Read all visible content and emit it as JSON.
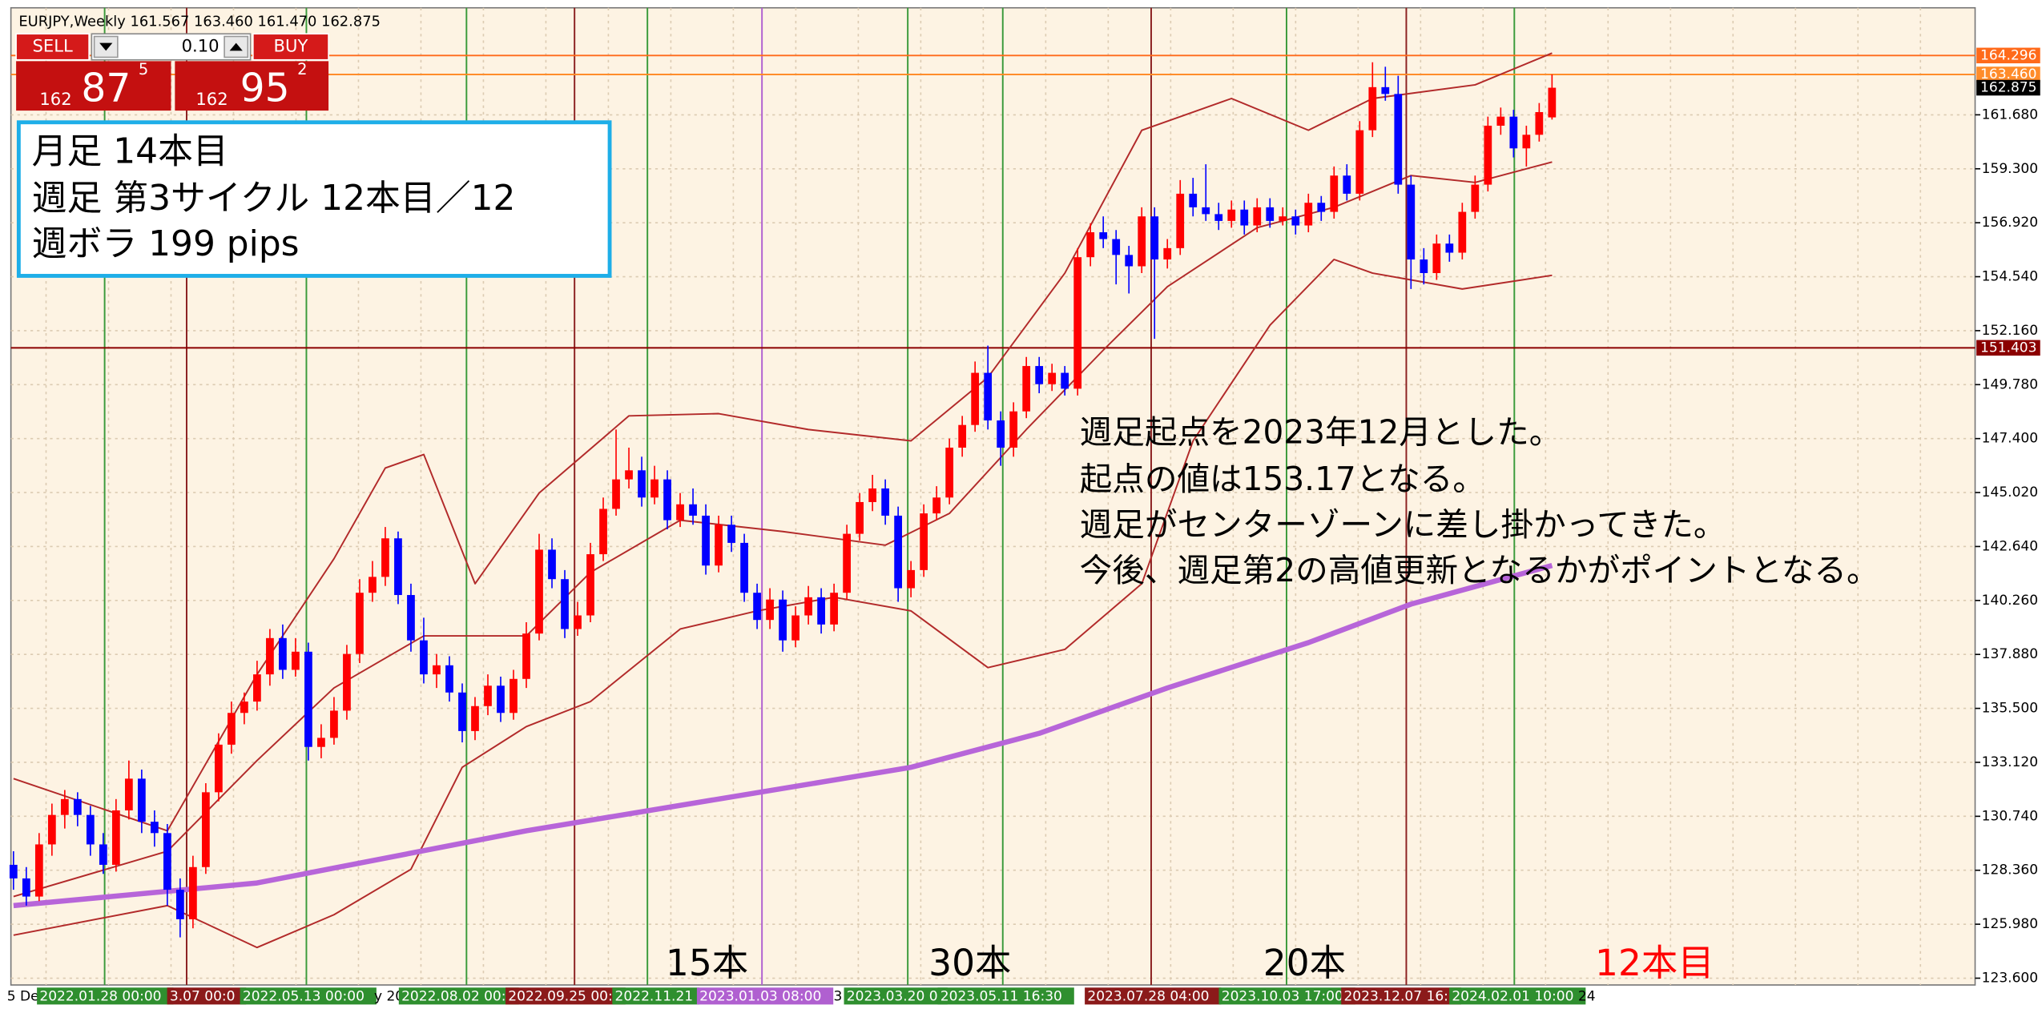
{
  "header": "EURJPY,Weekly  161.567 163.460 161.470 162.875",
  "trade_panel": {
    "sell": "SELL",
    "buy": "BUY",
    "lot": "0.10",
    "bid": {
      "big": "162",
      "pips": "87",
      "point": "5"
    },
    "ask": {
      "big": "162",
      "pips": "95",
      "point": "2"
    }
  },
  "info_box": [
    "月足  14本目",
    "週足  第3サイクル  12本目／12",
    "週ボラ  199 pips"
  ],
  "annotation": [
    "週足起点を2023年12月とした。",
    "起点の値は153.17となる。",
    "週足がセンターゾーンに差し掛かってきた。",
    "今後、週足第2の高値更新となるかがポイントとなる。"
  ],
  "counts": [
    {
      "text": "15本",
      "color": "#000000"
    },
    {
      "text": "30本",
      "color": "#000000"
    },
    {
      "text": "20本",
      "color": "#000000"
    },
    {
      "text": "12本目",
      "color": "#ff0000"
    }
  ],
  "time_labels": [
    "5 De",
    "2022.01.28 00:00",
    "3.07 00:0",
    "2022.05.13 00:00",
    "y 20",
    "2022.08.02 00:",
    "2022.09.25 00:",
    "2022.11.21",
    "2023.01.03 08:00",
    "3",
    "2023.03.20 0",
    "2023.05.11 16:30",
    "2023.07.28 04:00",
    "2023.10.03 17:00",
    "2023.12.07 16:",
    "2024.02.01 10:00",
    "24"
  ],
  "chart_data": {
    "type": "candlestick",
    "up_color": "#ff0000",
    "down_color": "#0000ff",
    "grid": true,
    "xlim": [
      -0.2,
      153
    ],
    "ylim": [
      123.3,
      166.4
    ],
    "yticks": [
      {
        "value": 161.68,
        "label": "161.680"
      },
      {
        "value": 159.3,
        "label": "159.300"
      },
      {
        "value": 156.92,
        "label": "156.920"
      },
      {
        "value": 154.54,
        "label": "154.540"
      },
      {
        "value": 152.16,
        "label": "152.160"
      },
      {
        "value": 149.78,
        "label": "149.780"
      },
      {
        "value": 147.4,
        "label": "147.400"
      },
      {
        "value": 145.02,
        "label": "145.020"
      },
      {
        "value": 142.64,
        "label": "142.640"
      },
      {
        "value": 140.26,
        "label": "140.260"
      },
      {
        "value": 137.88,
        "label": "137.880"
      },
      {
        "value": 135.5,
        "label": "135.500"
      },
      {
        "value": 133.12,
        "label": "133.120"
      },
      {
        "value": 130.74,
        "label": "130.740"
      },
      {
        "value": 128.36,
        "label": "128.360"
      },
      {
        "value": 125.98,
        "label": "125.980"
      },
      {
        "value": 123.6,
        "label": "123.600"
      }
    ],
    "price_lines": [
      {
        "value": 164.296,
        "label": "164.296",
        "color": "#ff6a1a"
      },
      {
        "value": 163.46,
        "label": "163.460",
        "color": "#ff8c2a"
      },
      {
        "value": 151.403,
        "label": "151.403",
        "color": "#8b0000"
      }
    ],
    "current_price": {
      "value": 162.875,
      "label": "162.875",
      "color": "#000000"
    },
    "candles": [
      [
        128.6,
        129.2,
        127.5,
        128.0
      ],
      [
        128.0,
        128.5,
        126.8,
        127.2
      ],
      [
        127.2,
        130.0,
        127.0,
        129.5
      ],
      [
        129.5,
        131.3,
        129.0,
        130.8
      ],
      [
        130.8,
        131.9,
        130.2,
        131.5
      ],
      [
        131.5,
        131.8,
        130.3,
        130.8
      ],
      [
        130.8,
        131.2,
        129.0,
        129.5
      ],
      [
        129.5,
        130.0,
        128.2,
        128.6
      ],
      [
        128.6,
        131.5,
        128.3,
        131.0
      ],
      [
        131.0,
        133.2,
        130.6,
        132.4
      ],
      [
        132.4,
        132.8,
        130.0,
        130.5
      ],
      [
        130.5,
        131.0,
        129.4,
        130.0
      ],
      [
        130.0,
        130.4,
        126.8,
        127.5
      ],
      [
        127.5,
        128.0,
        125.4,
        126.2
      ],
      [
        126.2,
        129.0,
        125.8,
        128.5
      ],
      [
        128.5,
        132.2,
        128.2,
        131.8
      ],
      [
        131.8,
        134.4,
        131.4,
        133.9
      ],
      [
        133.9,
        135.8,
        133.5,
        135.3
      ],
      [
        135.3,
        136.2,
        134.8,
        135.8
      ],
      [
        135.8,
        137.6,
        135.4,
        137.0
      ],
      [
        137.0,
        139.0,
        136.5,
        138.6
      ],
      [
        138.6,
        139.2,
        136.8,
        137.2
      ],
      [
        137.2,
        138.6,
        136.9,
        138.0
      ],
      [
        138.0,
        138.4,
        133.2,
        133.8
      ],
      [
        133.8,
        134.8,
        133.3,
        134.2
      ],
      [
        134.2,
        136.0,
        133.9,
        135.4
      ],
      [
        135.4,
        138.3,
        135.0,
        137.9
      ],
      [
        137.9,
        141.2,
        137.5,
        140.6
      ],
      [
        140.6,
        142.0,
        140.2,
        141.3
      ],
      [
        141.3,
        143.5,
        140.9,
        143.0
      ],
      [
        143.0,
        143.3,
        140.1,
        140.5
      ],
      [
        140.5,
        141.0,
        138.0,
        138.5
      ],
      [
        138.5,
        139.5,
        136.6,
        137.0
      ],
      [
        137.0,
        137.9,
        136.4,
        137.4
      ],
      [
        137.4,
        137.8,
        135.8,
        136.2
      ],
      [
        136.2,
        136.6,
        134.0,
        134.5
      ],
      [
        134.5,
        136.0,
        134.1,
        135.6
      ],
      [
        135.6,
        137.0,
        135.2,
        136.5
      ],
      [
        136.5,
        136.9,
        134.9,
        135.3
      ],
      [
        135.3,
        137.2,
        135.0,
        136.8
      ],
      [
        136.8,
        139.3,
        136.4,
        138.8
      ],
      [
        138.8,
        143.2,
        138.5,
        142.5
      ],
      [
        142.5,
        143.0,
        140.8,
        141.2
      ],
      [
        141.2,
        141.6,
        138.6,
        139.0
      ],
      [
        139.0,
        140.2,
        138.7,
        139.6
      ],
      [
        139.6,
        142.8,
        139.3,
        142.3
      ],
      [
        142.3,
        144.8,
        142.0,
        144.3
      ],
      [
        144.3,
        147.8,
        144.0,
        145.6
      ],
      [
        145.6,
        147.0,
        145.2,
        146.0
      ],
      [
        146.0,
        146.6,
        144.4,
        144.8
      ],
      [
        144.8,
        146.2,
        144.5,
        145.6
      ],
      [
        145.6,
        146.0,
        143.4,
        143.8
      ],
      [
        143.8,
        145.0,
        143.5,
        144.5
      ],
      [
        144.5,
        145.2,
        143.6,
        144.0
      ],
      [
        144.0,
        144.5,
        141.4,
        141.8
      ],
      [
        141.8,
        144.0,
        141.5,
        143.6
      ],
      [
        143.6,
        144.0,
        142.4,
        142.8
      ],
      [
        142.8,
        143.2,
        140.2,
        140.6
      ],
      [
        140.6,
        141.0,
        139.0,
        139.4
      ],
      [
        139.4,
        140.8,
        139.0,
        140.3
      ],
      [
        140.3,
        140.7,
        138.0,
        138.5
      ],
      [
        138.5,
        140.0,
        138.2,
        139.6
      ],
      [
        139.6,
        140.9,
        139.2,
        140.4
      ],
      [
        140.4,
        140.8,
        138.8,
        139.2
      ],
      [
        139.2,
        141.0,
        138.9,
        140.6
      ],
      [
        140.6,
        143.6,
        140.3,
        143.2
      ],
      [
        143.2,
        145.0,
        142.9,
        144.6
      ],
      [
        144.6,
        145.8,
        144.2,
        145.2
      ],
      [
        145.2,
        145.6,
        143.6,
        144.0
      ],
      [
        144.0,
        144.4,
        140.2,
        140.8
      ],
      [
        140.8,
        142.0,
        140.4,
        141.6
      ],
      [
        141.6,
        144.5,
        141.3,
        144.1
      ],
      [
        144.1,
        145.3,
        143.8,
        144.8
      ],
      [
        144.8,
        147.4,
        144.5,
        147.0
      ],
      [
        147.0,
        148.4,
        146.6,
        148.0
      ],
      [
        148.0,
        150.8,
        147.7,
        150.3
      ],
      [
        150.3,
        151.5,
        147.8,
        148.2
      ],
      [
        148.2,
        148.6,
        146.2,
        147.0
      ],
      [
        147.0,
        149.0,
        146.6,
        148.6
      ],
      [
        148.6,
        151.0,
        148.3,
        150.6
      ],
      [
        150.6,
        151.0,
        149.4,
        149.8
      ],
      [
        149.8,
        150.7,
        149.5,
        150.3
      ],
      [
        150.3,
        150.6,
        149.3,
        149.6
      ],
      [
        149.6,
        155.8,
        149.3,
        155.4
      ],
      [
        155.4,
        156.9,
        155.0,
        156.5
      ],
      [
        156.5,
        157.2,
        155.8,
        156.2
      ],
      [
        156.2,
        156.6,
        154.2,
        155.5
      ],
      [
        155.5,
        155.9,
        153.8,
        155.0
      ],
      [
        155.0,
        157.6,
        154.7,
        157.2
      ],
      [
        157.2,
        157.6,
        151.8,
        155.3
      ],
      [
        155.3,
        156.2,
        154.9,
        155.8
      ],
      [
        155.8,
        158.8,
        155.5,
        158.2
      ],
      [
        158.2,
        158.9,
        157.2,
        157.6
      ],
      [
        157.6,
        159.5,
        157.0,
        157.3
      ],
      [
        157.3,
        157.8,
        156.6,
        157.0
      ],
      [
        157.0,
        157.9,
        156.7,
        157.5
      ],
      [
        157.5,
        157.9,
        156.4,
        156.8
      ],
      [
        156.8,
        158.0,
        156.5,
        157.6
      ],
      [
        157.6,
        158.0,
        156.7,
        157.0
      ],
      [
        157.0,
        157.6,
        156.8,
        157.2
      ],
      [
        157.2,
        157.5,
        156.4,
        156.8
      ],
      [
        156.8,
        158.2,
        156.5,
        157.8
      ],
      [
        157.8,
        158.1,
        157.0,
        157.4
      ],
      [
        157.4,
        159.4,
        157.1,
        159.0
      ],
      [
        159.0,
        159.5,
        157.9,
        158.2
      ],
      [
        158.2,
        161.4,
        157.9,
        161.0
      ],
      [
        161.0,
        164.0,
        160.7,
        162.9
      ],
      [
        162.9,
        163.8,
        162.3,
        162.6
      ],
      [
        162.6,
        163.4,
        158.2,
        158.6
      ],
      [
        158.6,
        159.0,
        154.0,
        155.3
      ],
      [
        155.3,
        155.8,
        154.2,
        154.7
      ],
      [
        154.7,
        156.4,
        154.4,
        156.0
      ],
      [
        156.0,
        156.4,
        155.2,
        155.6
      ],
      [
        155.6,
        157.8,
        155.3,
        157.4
      ],
      [
        157.4,
        159.0,
        157.1,
        158.6
      ],
      [
        158.6,
        161.6,
        158.3,
        161.2
      ],
      [
        161.2,
        162.0,
        160.8,
        161.6
      ],
      [
        161.6,
        161.9,
        159.8,
        160.2
      ],
      [
        160.2,
        161.2,
        159.4,
        160.8
      ],
      [
        160.8,
        162.2,
        160.5,
        161.8
      ],
      [
        161.567,
        163.46,
        161.47,
        162.875
      ]
    ],
    "lines": [
      {
        "color": "#b22a2a",
        "width": 1.2,
        "x": [
          0,
          12,
          19,
          25,
          29,
          32,
          36,
          41,
          48,
          55,
          62,
          70,
          76,
          82,
          88,
          95,
          101,
          106,
          114,
          120
        ],
        "values": [
          132.4,
          130.1,
          137.0,
          142.1,
          146.1,
          146.7,
          141.0,
          145.0,
          148.4,
          148.5,
          147.8,
          147.3,
          150.1,
          154.7,
          161.0,
          162.4,
          161.0,
          162.4,
          163.0,
          164.4
        ]
      },
      {
        "color": "#b22a2a",
        "width": 1.2,
        "x": [
          0,
          12,
          19,
          25,
          32,
          40,
          45,
          52,
          60,
          68,
          73,
          79,
          85,
          90,
          97,
          103,
          109,
          114,
          120
        ],
        "values": [
          127.2,
          129.2,
          133.2,
          136.4,
          138.7,
          138.7,
          141.5,
          143.8,
          143.3,
          142.7,
          144.1,
          147.8,
          151.3,
          154.1,
          156.7,
          157.6,
          159.0,
          158.7,
          159.6
        ]
      },
      {
        "color": "#b22a2a",
        "width": 1.2,
        "x": [
          0,
          12,
          19,
          25,
          31,
          35,
          40,
          45,
          52,
          58,
          64,
          70,
          76,
          82,
          88,
          92,
          98,
          103,
          106,
          109,
          113,
          120
        ],
        "values": [
          125.5,
          126.8,
          124.95,
          126.4,
          128.4,
          132.9,
          134.7,
          135.8,
          139.0,
          139.8,
          140.4,
          139.8,
          137.3,
          138.1,
          141.0,
          147.3,
          152.4,
          155.3,
          154.7,
          154.4,
          154.0,
          154.6
        ]
      },
      {
        "color": "#b765d9",
        "width": 4,
        "x": [
          0,
          19,
          40,
          55,
          70,
          80,
          90,
          101,
          109,
          120
        ],
        "values": [
          126.8,
          127.8,
          130.1,
          131.5,
          132.9,
          134.4,
          136.4,
          138.4,
          140.1,
          141.8
        ]
      }
    ]
  }
}
